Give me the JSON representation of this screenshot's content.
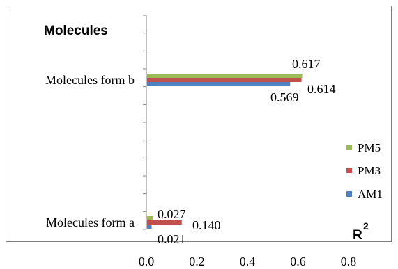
{
  "chart_data": {
    "type": "bar",
    "orientation": "horizontal",
    "title": "Molecules",
    "xlabel": "R",
    "xlabel_superscript": "2",
    "ylabel": "",
    "xlim": [
      0,
      0.8
    ],
    "xticks": [
      "0.0",
      "0.2",
      "0.4",
      "0.6",
      "0.8"
    ],
    "grid": false,
    "legend_position": "right",
    "categories": [
      "Molecules form b",
      "Molecules form a"
    ],
    "series": [
      {
        "name": "PM5",
        "color": "#9bbb59",
        "values": [
          0.617,
          0.027
        ],
        "labels": [
          "0.617",
          "0.027"
        ]
      },
      {
        "name": "PM3",
        "color": "#c0504d",
        "values": [
          0.614,
          0.14
        ],
        "labels": [
          "0.614",
          "0.140"
        ]
      },
      {
        "name": "AM1",
        "color": "#4f81bd",
        "values": [
          0.569,
          0.021
        ],
        "labels": [
          "0.569",
          "0.021"
        ]
      }
    ]
  }
}
